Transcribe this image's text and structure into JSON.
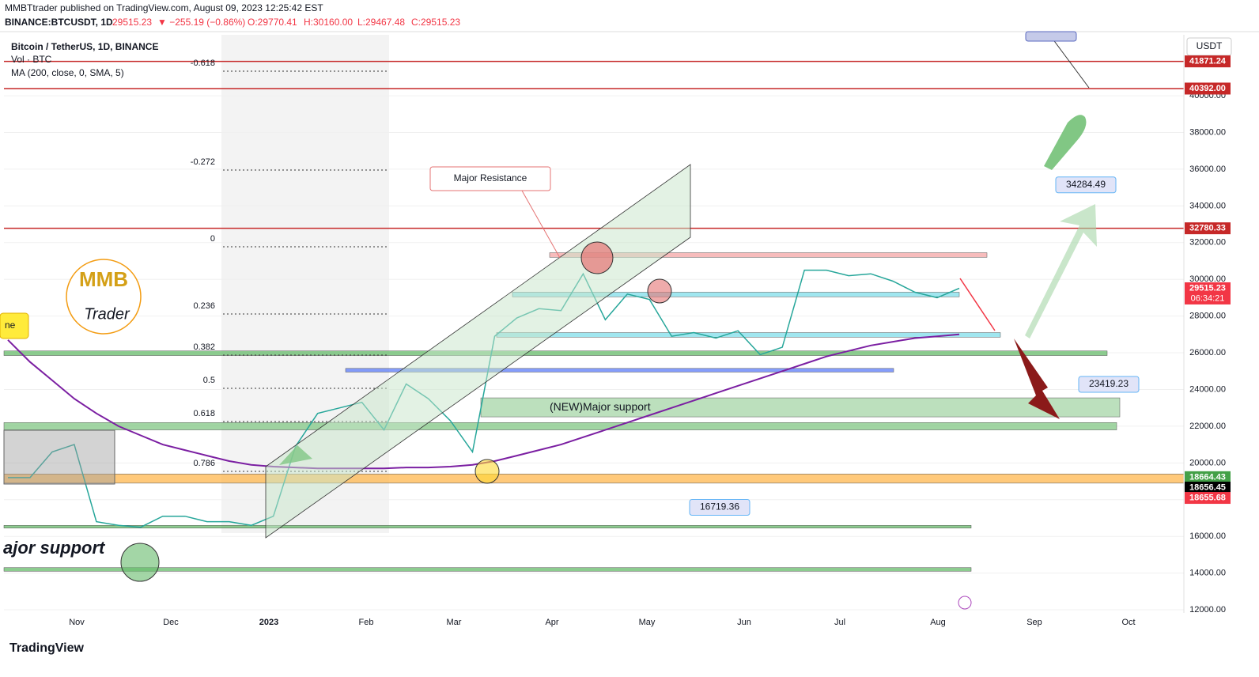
{
  "header": {
    "publisher": "MMBTtrader published on TradingView.com, August 09, 2023 12:25:42 EST",
    "symbol": "BINANCE:BTCUSDT, 1D",
    "last": "29515.23",
    "change": "▼ −255.19 (−0.86%)",
    "open": "O:29770.41",
    "high": "H:30160.00",
    "low": "L:29467.48",
    "close": "C:29515.23"
  },
  "legend": {
    "title": "Bitcoin / TetherUS, 1D, BINANCE",
    "volume": "Vol · BTC",
    "ma": "MA (200, close, 0, SMA, 5)"
  },
  "currency": "USDT",
  "logo": {
    "top": "MMB",
    "bottom": "Trader"
  },
  "footer": "TradingView",
  "chart_data": {
    "type": "line",
    "series": [
      {
        "name": "BTCUSDT",
        "color": "#26a69a",
        "values": [
          19200,
          19200,
          20600,
          21000,
          16800,
          16600,
          16500,
          17100,
          17100,
          16800,
          16800,
          16600,
          17100,
          20900,
          22700,
          23000,
          23300,
          21800,
          24300,
          23500,
          22300,
          20600,
          26900,
          27900,
          28400,
          28300,
          30300,
          27800,
          29200,
          28900,
          26900,
          27100,
          26800,
          27200,
          25900,
          26300,
          30500,
          30500,
          30200,
          30300,
          29900,
          29300,
          29000,
          29515.23
        ]
      },
      {
        "name": "MA 200",
        "color": "#7b1fa2",
        "values": [
          26700,
          25500,
          24500,
          23500,
          22700,
          22000,
          21500,
          21000,
          20700,
          20400,
          20100,
          19900,
          19800,
          19750,
          19700,
          19700,
          19700,
          19700,
          19750,
          19750,
          19800,
          19900,
          20100,
          20400,
          20700,
          21000,
          21400,
          21800,
          22200,
          22600,
          23000,
          23400,
          23800,
          24200,
          24600,
          25000,
          25400,
          25800,
          26100,
          26400,
          26600,
          26800,
          26900,
          27000
        ]
      }
    ],
    "ylim": [
      11830,
      43320
    ],
    "yticks": [
      {
        "value": 12000,
        "label": "12000.00"
      },
      {
        "value": 14000,
        "label": "14000.00"
      },
      {
        "value": 16000,
        "label": "16000.00"
      },
      {
        "value": 18000,
        "label": "18000.00"
      },
      {
        "value": 20000,
        "label": "20000.00"
      },
      {
        "value": 22000,
        "label": "22000.00"
      },
      {
        "value": 24000,
        "label": "24000.00"
      },
      {
        "value": 26000,
        "label": "26000.00"
      },
      {
        "value": 28000,
        "label": "28000.00"
      },
      {
        "value": 30000,
        "label": "30000.00"
      },
      {
        "value": 32000,
        "label": "32000.00"
      },
      {
        "value": 34000,
        "label": "34000.00"
      },
      {
        "value": 36000,
        "label": "36000.00"
      },
      {
        "value": 38000,
        "label": "38000.00"
      },
      {
        "value": 40000,
        "label": "40000.00"
      }
    ],
    "time_labels": [
      "Nov",
      "Dec",
      "2023",
      "Feb",
      "Mar",
      "Apr",
      "May",
      "Jun",
      "Jul",
      "Aug",
      "Sep",
      "Oct"
    ],
    "levels": [
      41871.24,
      40392,
      32780.33
    ],
    "level_color": "#c62828",
    "zones": [
      {
        "low": 31200,
        "high": 31450,
        "color": "#f4a6a6"
      },
      {
        "low": 29050,
        "high": 29300,
        "color": "#80deea"
      },
      {
        "low": 26850,
        "high": 27100,
        "color": "#80deea"
      },
      {
        "low": 25850,
        "high": 26100,
        "color": "#66bb6a"
      },
      {
        "low": 24950,
        "high": 25150,
        "color": "#5c7cfa"
      },
      {
        "low": 22510,
        "high": 23545,
        "color": "#a5d6a7",
        "label": "(NEW)Major support"
      },
      {
        "low": 21800,
        "high": 22200,
        "color": "#81c784"
      },
      {
        "low": 18900,
        "high": 19400,
        "color": "#ffb74d"
      },
      {
        "low": 16450,
        "high": 16600,
        "color": "#66bb6a"
      },
      {
        "low": 14100,
        "high": 14300,
        "color": "#66bb6a"
      }
    ],
    "price_labels": [
      {
        "value": 41871.24,
        "label": "41871.24",
        "color": "#c62828"
      },
      {
        "value": 40392,
        "label": "40392.00",
        "color": "#c62828"
      },
      {
        "value": 32780.33,
        "label": "32780.33",
        "color": "#c62828"
      },
      {
        "value": 29515.23,
        "label": "29515.23",
        "color": "#f23645",
        "extra": "06:34:21"
      },
      {
        "value": 18664.43,
        "label": "18664.43",
        "color": "#43a047"
      },
      {
        "value": 18656.45,
        "label": "18656.45",
        "color": "#000000"
      },
      {
        "value": 18655.68,
        "label": "18655.68",
        "color": "#f23645"
      }
    ],
    "callouts": [
      {
        "value": 34284.49,
        "label": "34284.49"
      },
      {
        "value": 23419.23,
        "label": "23419.23"
      },
      {
        "value": 16719.36,
        "label": "16719.36"
      }
    ],
    "fib_levels": [
      "-0.618",
      "-0.272",
      "0",
      "0.236",
      "0.382",
      "0.5",
      "0.618",
      "0.786"
    ],
    "annotations": {
      "resistance": "Major Resistance",
      "support": "ajor support",
      "cut": "ne"
    }
  }
}
